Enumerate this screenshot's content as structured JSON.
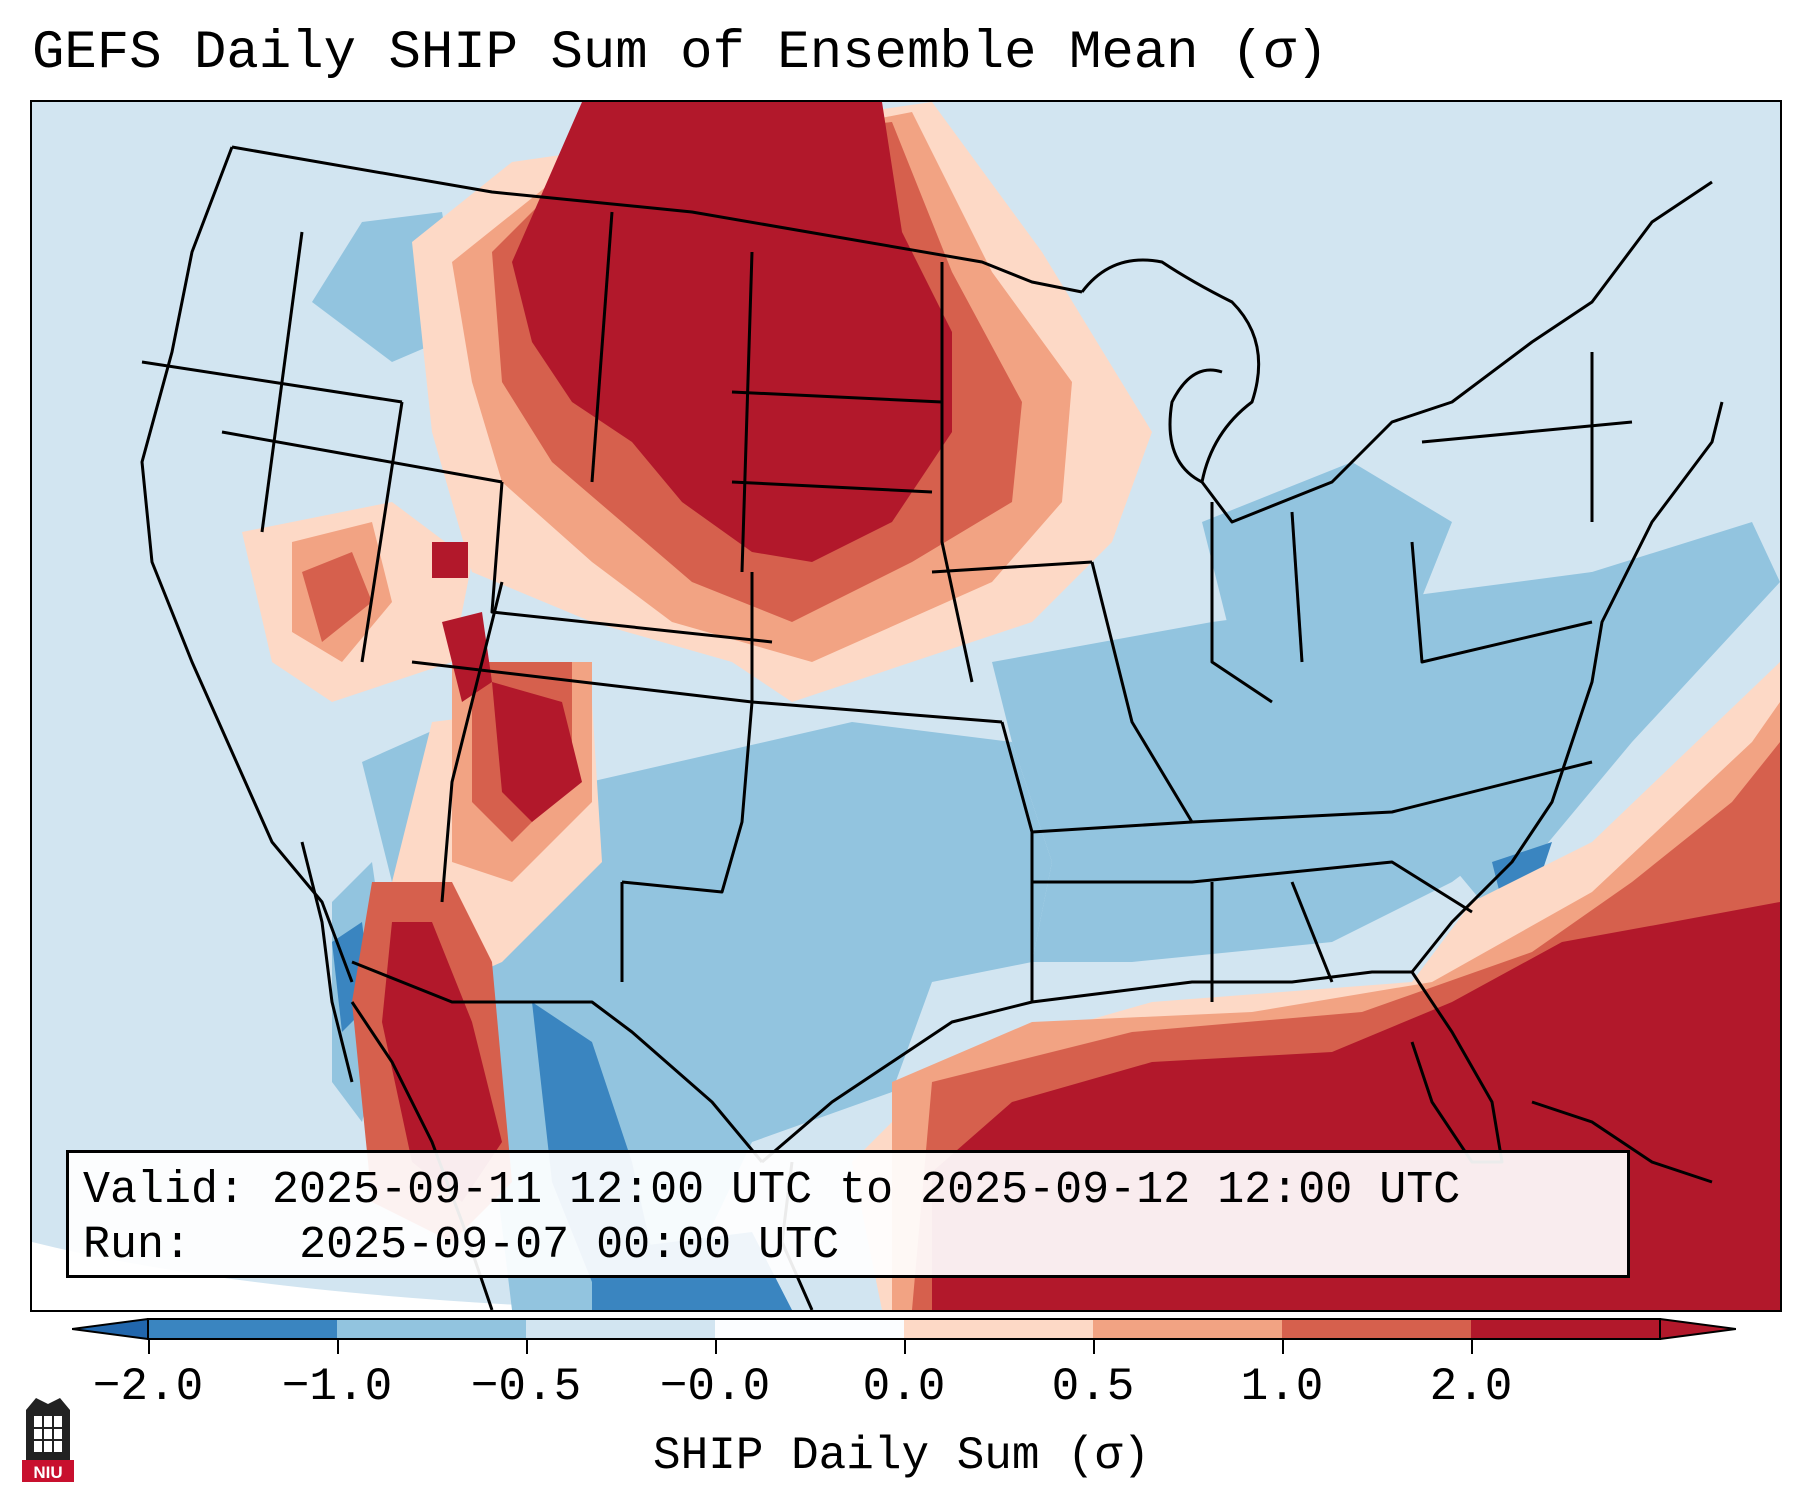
{
  "title": "GEFS Daily SHIP Sum of Ensemble Mean (σ)",
  "info": {
    "valid_label": "Valid:",
    "valid_range": "2025-09-11 12:00 UTC to 2025-09-12 12:00 UTC",
    "run_label": "Run:",
    "run_time": "2025-09-07 00:00 UTC"
  },
  "colorbar": {
    "label": "SHIP Daily Sum (σ)",
    "ticks": [
      "−2.0",
      "−1.0",
      "−0.5",
      "−0.0",
      "0.0",
      "0.5",
      "1.0",
      "2.0"
    ],
    "colors": [
      "#3a85c0",
      "#92c4df",
      "#d2e5f1",
      "#fbfdff",
      "#fdd9c6",
      "#f2a383",
      "#d6604d",
      "#b2182b"
    ],
    "extend": "both"
  },
  "legend_colors": {
    "neg_extreme": "#2166ac",
    "neg_2": "#3a85c0",
    "neg_1": "#92c4df",
    "neg_05": "#d2e5f1",
    "neutral": "#fbfdff",
    "pos_05": "#fdd9c6",
    "pos_1": "#f2a383",
    "pos_2": "#d6604d",
    "pos_extreme": "#b2182b"
  },
  "logo": {
    "text": "NIU",
    "color": "#c8102e"
  }
}
